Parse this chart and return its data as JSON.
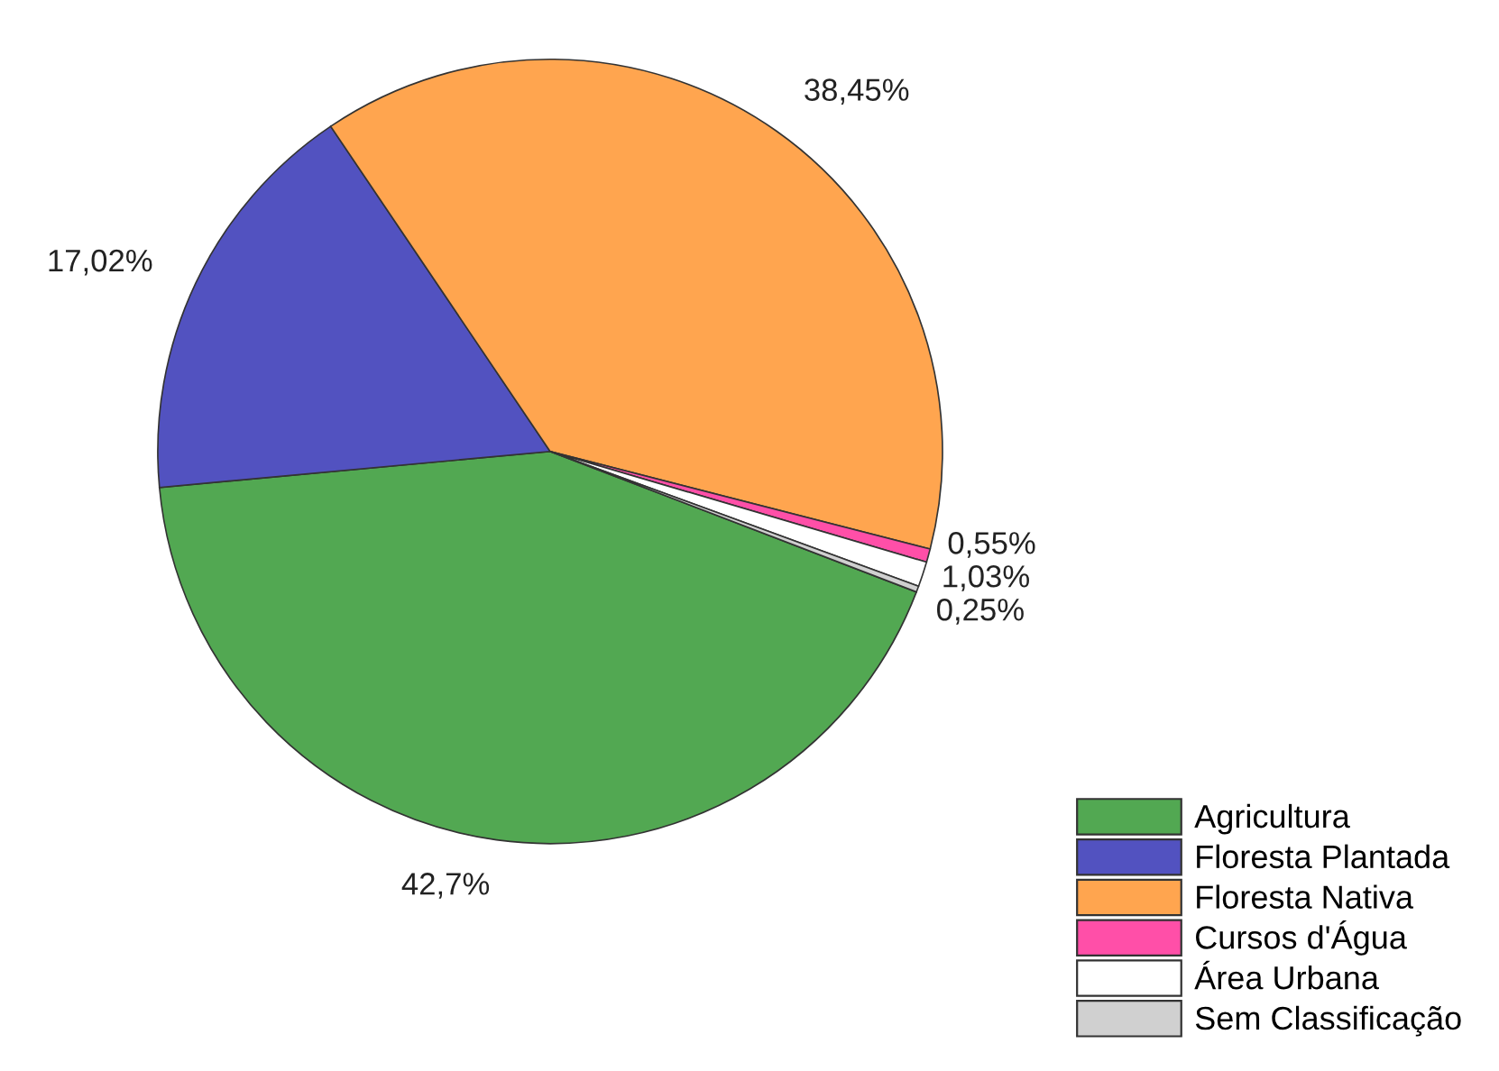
{
  "chart_data": {
    "type": "pie",
    "categories": [
      "Agricultura",
      "Floresta Plantada",
      "Floresta Nativa",
      "Cursos d'Água",
      "Área Urbana",
      "Sem Classificação"
    ],
    "values": [
      42.7,
      17.02,
      38.45,
      0.55,
      1.03,
      0.25
    ],
    "value_labels": [
      "42,7%",
      "17,02%",
      "38,45%",
      "0,55%",
      "1,03%",
      "0,25%"
    ],
    "colors": [
      "#52a852",
      "#5252c0",
      "#ffa54f",
      "#ff4fa8",
      "#ffffff",
      "#d0d0d0"
    ],
    "legend": "bottom right"
  }
}
